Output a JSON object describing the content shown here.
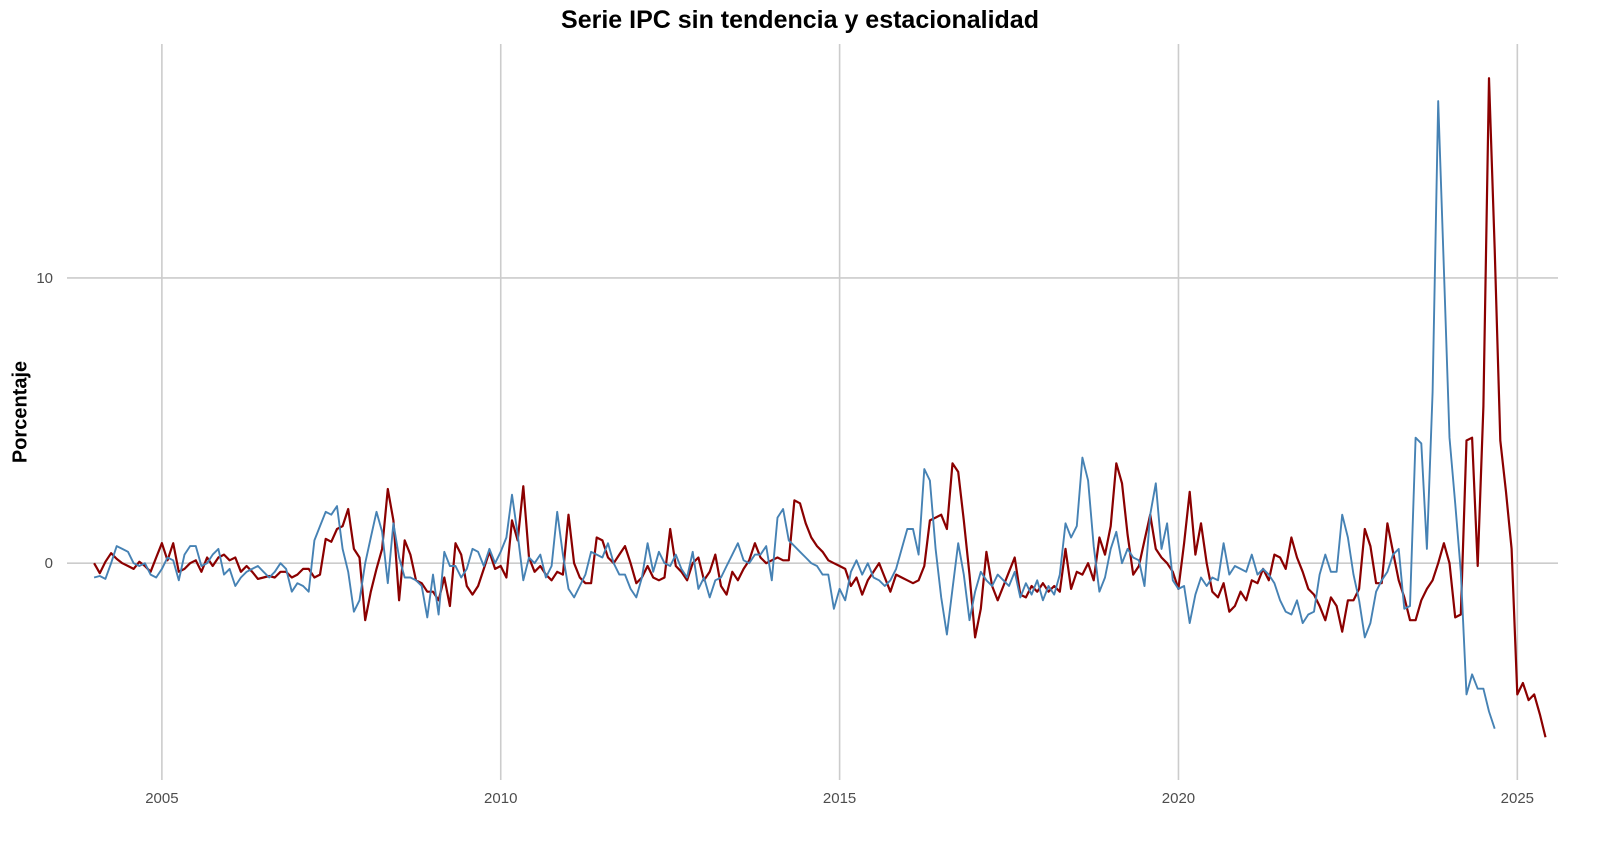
{
  "chart_data": {
    "type": "line",
    "title": "Serie IPC sin tendencia y estacionalidad",
    "xlabel": "",
    "ylabel": "Porcentaje",
    "xlim": [
      2003.6,
      2025.6
    ],
    "ylim": [
      -7.6,
      18.2
    ],
    "x_ticks": [
      2005,
      2010,
      2015,
      2020,
      2025
    ],
    "x_tick_labels": [
      "2005",
      "2010",
      "2015",
      "2020",
      "2025"
    ],
    "y_ticks": [
      0,
      10
    ],
    "y_tick_labels": [
      "0",
      "10"
    ],
    "grid": true,
    "legend": "none",
    "x_start": 2004.0,
    "x_step": 0.08333,
    "series": [
      {
        "color": "#8b0000",
        "values": [
          0.0,
          -0.35,
          0.05,
          0.35,
          0.15,
          0.0,
          -0.1,
          -0.2,
          0.05,
          -0.1,
          -0.3,
          0.2,
          0.7,
          0.1,
          0.7,
          -0.3,
          -0.2,
          0.0,
          0.1,
          -0.3,
          0.2,
          -0.1,
          0.2,
          0.3,
          0.1,
          0.2,
          -0.3,
          -0.1,
          -0.3,
          -0.55,
          -0.5,
          -0.45,
          -0.5,
          -0.3,
          -0.3,
          -0.5,
          -0.4,
          -0.2,
          -0.2,
          -0.5,
          -0.4,
          0.85,
          0.75,
          1.2,
          1.3,
          1.9,
          0.5,
          0.2,
          -2.0,
          -1.0,
          -0.2,
          0.5,
          2.6,
          1.5,
          -1.3,
          0.8,
          0.3,
          -0.6,
          -0.7,
          -1.0,
          -1.0,
          -1.3,
          -0.5,
          -1.5,
          0.7,
          0.3,
          -0.8,
          -1.1,
          -0.8,
          -0.2,
          0.4,
          -0.2,
          -0.1,
          -0.5,
          1.5,
          0.8,
          2.7,
          0.2,
          -0.3,
          -0.1,
          -0.4,
          -0.6,
          -0.3,
          -0.4,
          1.7,
          0.0,
          -0.5,
          -0.7,
          -0.7,
          0.9,
          0.8,
          0.2,
          0.0,
          0.3,
          0.6,
          0.0,
          -0.7,
          -0.5,
          -0.1,
          -0.5,
          -0.6,
          -0.5,
          1.2,
          -0.1,
          -0.3,
          -0.6,
          0.0,
          0.2,
          -0.6,
          -0.3,
          0.3,
          -0.8,
          -1.1,
          -0.3,
          -0.6,
          -0.2,
          0.1,
          0.7,
          0.2,
          0.0,
          0.1,
          0.2,
          0.1,
          0.1,
          2.2,
          2.1,
          1.4,
          0.9,
          0.6,
          0.4,
          0.1,
          0.0,
          -0.1,
          -0.2,
          -0.8,
          -0.5,
          -1.1,
          -0.6,
          -0.3,
          0.0,
          -0.5,
          -1.0,
          -0.4,
          -0.5,
          -0.6,
          -0.7,
          -0.6,
          -0.1,
          1.5,
          1.6,
          1.7,
          1.2,
          3.5,
          3.2,
          1.5,
          -0.4,
          -2.6,
          -1.6,
          0.4,
          -0.8,
          -1.3,
          -0.8,
          -0.3,
          0.2,
          -1.1,
          -1.2,
          -0.8,
          -1.0,
          -0.7,
          -1.0,
          -0.8,
          -1.0,
          0.5,
          -0.9,
          -0.3,
          -0.4,
          0.0,
          -0.6,
          0.9,
          0.3,
          1.3,
          3.5,
          2.8,
          1.0,
          -0.4,
          -0.1,
          0.8,
          1.7,
          0.5,
          0.2,
          0.0,
          -0.3,
          -0.9,
          0.7,
          2.5,
          0.3,
          1.4,
          0.0,
          -1.0,
          -1.2,
          -0.7,
          -1.7,
          -1.5,
          -1.0,
          -1.3,
          -0.6,
          -0.7,
          -0.2,
          -0.6,
          0.3,
          0.2,
          -0.2,
          0.9,
          0.2,
          -0.3,
          -0.9,
          -1.1,
          -1.5,
          -2.0,
          -1.2,
          -1.5,
          -2.4,
          -1.3,
          -1.3,
          -0.9,
          1.2,
          0.6,
          -0.7,
          -0.7,
          1.4,
          0.4,
          -0.6,
          -1.2,
          -2.0,
          -2.0,
          -1.3,
          -0.9,
          -0.6,
          0.0,
          0.7,
          0.0,
          -1.9,
          -1.8,
          4.3,
          4.4,
          -0.1,
          5.5,
          17.0,
          11.0,
          4.3,
          2.5,
          0.5,
          -4.6,
          -4.2,
          -4.8,
          -4.6,
          -5.3,
          -6.1
        ]
      },
      {
        "color": "#4682b4",
        "values": [
          -0.5,
          -0.45,
          -0.55,
          0.0,
          0.6,
          0.5,
          0.4,
          0.0,
          -0.1,
          0.0,
          -0.4,
          -0.5,
          -0.2,
          0.2,
          0.1,
          -0.6,
          0.3,
          0.6,
          0.6,
          -0.1,
          0.0,
          0.3,
          0.5,
          -0.4,
          -0.2,
          -0.8,
          -0.5,
          -0.3,
          -0.2,
          -0.1,
          -0.3,
          -0.5,
          -0.3,
          0.0,
          -0.2,
          -1.0,
          -0.7,
          -0.8,
          -1.0,
          0.8,
          1.3,
          1.8,
          1.7,
          2.0,
          0.5,
          -0.3,
          -1.7,
          -1.3,
          0.0,
          0.9,
          1.8,
          1.1,
          -0.7,
          1.4,
          0.2,
          -0.5,
          -0.5,
          -0.6,
          -0.8,
          -1.9,
          -0.4,
          -1.8,
          0.4,
          -0.1,
          -0.1,
          -0.5,
          -0.2,
          0.5,
          0.4,
          -0.1,
          0.5,
          0.0,
          0.4,
          0.9,
          2.4,
          1.0,
          -0.6,
          0.2,
          0.0,
          0.3,
          -0.5,
          -0.1,
          1.8,
          0.3,
          -0.9,
          -1.2,
          -0.8,
          -0.4,
          0.4,
          0.3,
          0.2,
          0.7,
          0.0,
          -0.4,
          -0.4,
          -0.9,
          -1.2,
          -0.5,
          0.7,
          -0.3,
          0.4,
          0.0,
          -0.1,
          0.3,
          -0.2,
          -0.5,
          0.4,
          -0.9,
          -0.5,
          -1.2,
          -0.6,
          -0.5,
          -0.1,
          0.3,
          0.7,
          0.1,
          0.0,
          0.3,
          0.3,
          0.6,
          -0.6,
          1.6,
          1.9,
          0.8,
          0.6,
          0.4,
          0.2,
          0.0,
          -0.1,
          -0.4,
          -0.4,
          -1.6,
          -0.9,
          -1.3,
          -0.3,
          0.1,
          -0.4,
          0.0,
          -0.5,
          -0.6,
          -0.8,
          -0.6,
          -0.2,
          0.5,
          1.2,
          1.2,
          0.3,
          3.3,
          2.9,
          0.5,
          -1.2,
          -2.5,
          -0.9,
          0.7,
          -0.4,
          -2.0,
          -1.0,
          -0.3,
          -0.6,
          -0.8,
          -0.4,
          -0.6,
          -0.8,
          -0.3,
          -1.2,
          -0.7,
          -1.1,
          -0.6,
          -1.3,
          -0.8,
          -1.1,
          -0.4,
          1.4,
          0.9,
          1.3,
          3.7,
          2.9,
          0.6,
          -1.0,
          -0.5,
          0.5,
          1.1,
          0.0,
          0.5,
          0.2,
          0.1,
          -0.8,
          1.7,
          2.8,
          0.5,
          1.4,
          -0.6,
          -0.9,
          -0.8,
          -2.1,
          -1.1,
          -0.5,
          -0.8,
          -0.5,
          -0.6,
          0.7,
          -0.4,
          -0.1,
          -0.2,
          -0.3,
          0.3,
          -0.4,
          -0.2,
          -0.4,
          -0.7,
          -1.3,
          -1.7,
          -1.8,
          -1.3,
          -2.1,
          -1.8,
          -1.7,
          -0.4,
          0.3,
          -0.3,
          -0.3,
          1.7,
          0.9,
          -0.4,
          -1.3,
          -2.6,
          -2.1,
          -1.0,
          -0.6,
          -0.3,
          0.3,
          0.5,
          -1.6,
          -1.5,
          4.4,
          4.2,
          0.5,
          6.0,
          16.2,
          10.3,
          4.4,
          2.1,
          -0.3,
          -4.6,
          -3.9,
          -4.4,
          -4.4,
          -5.2,
          -5.8
        ]
      }
    ]
  }
}
